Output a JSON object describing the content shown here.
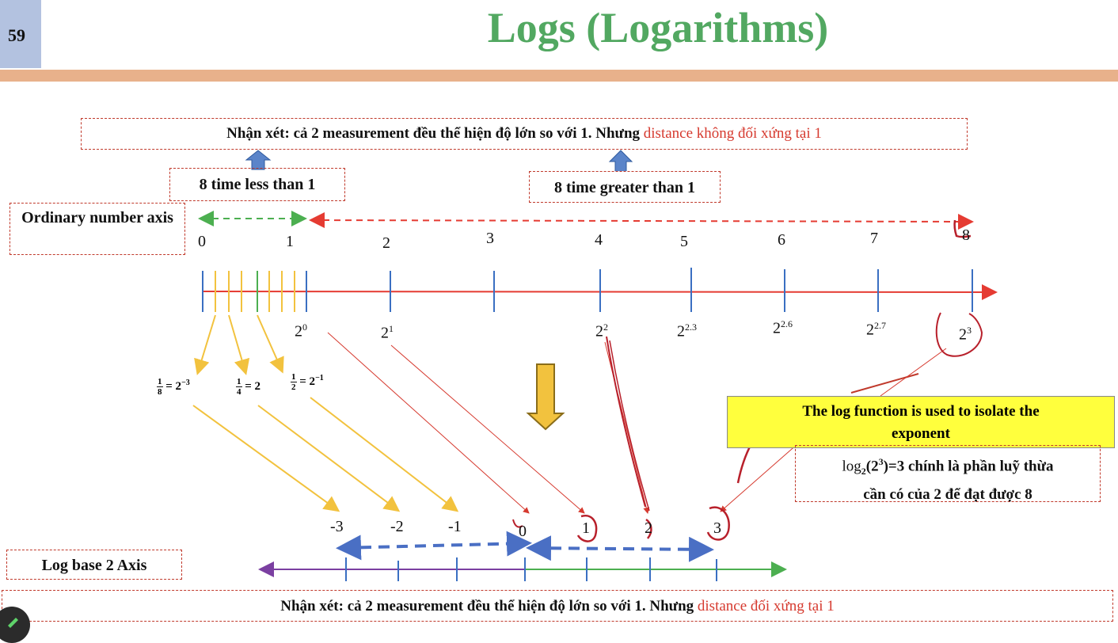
{
  "slide": {
    "number": "59",
    "title": "Logs (Logarithms)"
  },
  "top_note": {
    "prefix": "Nhận xét:  cả 2 measurement đều thể hiện độ lớn so với 1. Nhưng ",
    "highlight": "distance không đối xứng tại 1"
  },
  "less_box": "8 time less than 1",
  "greater_box": "8 time greater than 1",
  "ordinary_axis_label": "Ordinary number axis",
  "ordinary_ticks": [
    "0",
    "1",
    "2",
    "3",
    "4",
    "5",
    "6",
    "7",
    "8"
  ],
  "powers": {
    "p0": {
      "base": "2",
      "exp": "0"
    },
    "p1": {
      "base": "2",
      "exp": "1"
    },
    "p2": {
      "base": "2",
      "exp": "2"
    },
    "p23": {
      "base": "2",
      "exp": "2.3"
    },
    "p26": {
      "base": "2",
      "exp": "2.6"
    },
    "p27": {
      "base": "2",
      "exp": "2.7"
    },
    "p3": {
      "base": "2",
      "exp": "3"
    }
  },
  "fractions": {
    "f8": {
      "num": "1",
      "den": "8",
      "rhs": "= 2",
      "exp": "−3"
    },
    "f4": {
      "num": "1",
      "den": "4",
      "rhs": "= 2"
    },
    "f2": {
      "num": "1",
      "den": "2",
      "rhs": "= 2",
      "exp": "−1"
    }
  },
  "log_box": {
    "line1": "The log function is used to isolate the",
    "line2": "exponent"
  },
  "log_note": {
    "log": "log",
    "sub": "2",
    "arg": "(2",
    "arg_exp": "3",
    "arg_close": ")",
    "rest1": "=3 chính là phần luỹ thừa",
    "rest2": "cần có của 2 để đạt được 8"
  },
  "log_axis_label": "Log base 2 Axis",
  "log_ticks": [
    "-3",
    "-2",
    "-1",
    "0",
    "1",
    "2",
    "3"
  ],
  "bottom_note": {
    "prefix": "Nhận xét:  cả 2 measurement đều thể hiện độ lớn so với 1. Nhưng ",
    "highlight": "distance đối xứng tại 1"
  },
  "colors": {
    "title_green": "#52a861",
    "band": "#e8b18b",
    "axis_red": "#e53b32",
    "tick_blue": "#3a6fc2",
    "yellow": "#f2c23e",
    "green": "#4caf50",
    "purple": "#7b3fa1",
    "highlight_yellow": "#ffff3d"
  }
}
